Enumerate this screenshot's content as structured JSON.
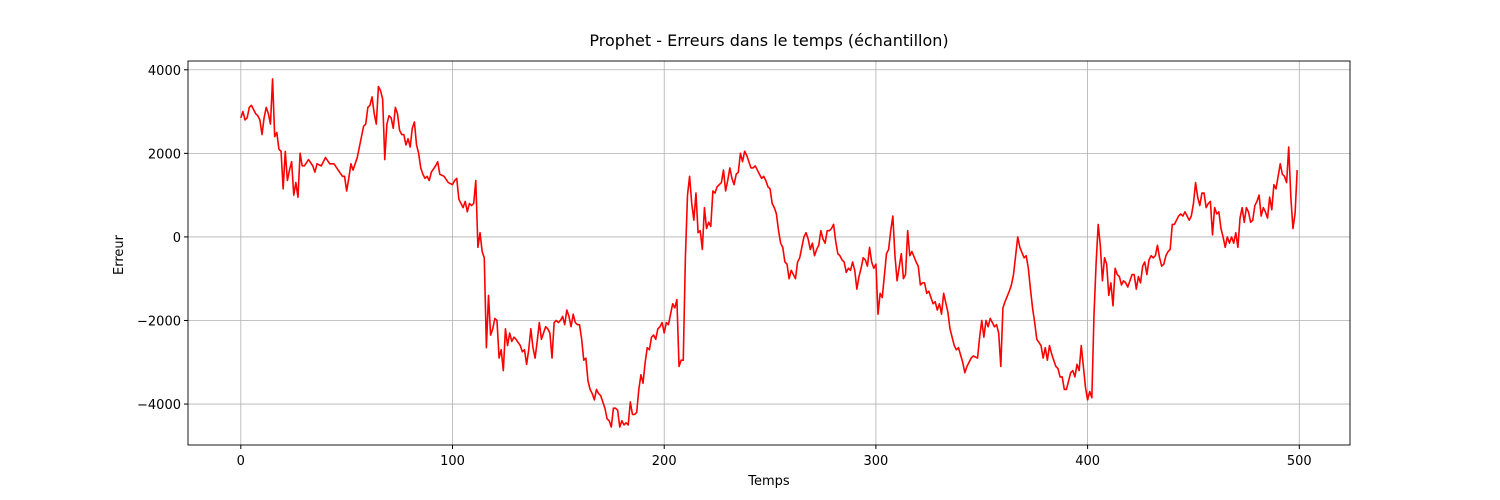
{
  "chart_data": {
    "type": "line",
    "title": "Prophet - Erreurs dans le temps (échantillon)",
    "x_label": "Temps",
    "y_label": "Erreur",
    "xlim": [
      -24.95,
      523.95
    ],
    "ylim": [
      -4980,
      4210
    ],
    "xticks": [
      0,
      100,
      200,
      300,
      400,
      500
    ],
    "yticks": [
      {
        "value": -4000,
        "label": "−4000"
      },
      {
        "value": -2000,
        "label": "−2000"
      },
      0,
      2000,
      4000
    ],
    "grid": true,
    "x": [
      0,
      1,
      2,
      3,
      4,
      5,
      6,
      7,
      8,
      9,
      10,
      11,
      12,
      13,
      14,
      15,
      16,
      17,
      18,
      19,
      20,
      21,
      22,
      23,
      24,
      25,
      26,
      27,
      28,
      29,
      30,
      32,
      34,
      35,
      36,
      38,
      40,
      42,
      44,
      46,
      48,
      49,
      50,
      51,
      52,
      53,
      55,
      57,
      58,
      59,
      60,
      61,
      62,
      63,
      64,
      65,
      66,
      67,
      68,
      69,
      70,
      71,
      72,
      73,
      74,
      75,
      76,
      77,
      78,
      79,
      80,
      81,
      82,
      83,
      84,
      85,
      86,
      87,
      88,
      89,
      90,
      92,
      93,
      94,
      96,
      98,
      100,
      101,
      102,
      103,
      105,
      106,
      107,
      108,
      109,
      110,
      111,
      112,
      113,
      114,
      115,
      116,
      117,
      118,
      119,
      120,
      121,
      122,
      123,
      124,
      125,
      126,
      127,
      128,
      129,
      130,
      132,
      133,
      134,
      135,
      136,
      137,
      138,
      139,
      140,
      141,
      142,
      143,
      144,
      145,
      146,
      147,
      148,
      149,
      150,
      151,
      152,
      153,
      154,
      155,
      156,
      157,
      158,
      159,
      160,
      161,
      162,
      163,
      164,
      165,
      166,
      167,
      168,
      169,
      170,
      171,
      172,
      173,
      174,
      175,
      176,
      177,
      178,
      179,
      180,
      181,
      182,
      183,
      184,
      185,
      186,
      187,
      188,
      189,
      190,
      191,
      192,
      193,
      194,
      195,
      196,
      197,
      198,
      199,
      200,
      201,
      202,
      203,
      204,
      205,
      206,
      207,
      208,
      209,
      210,
      211,
      212,
      213,
      214,
      215,
      216,
      217,
      218,
      219,
      220,
      221,
      222,
      223,
      224,
      225,
      226,
      227,
      228,
      229,
      230,
      231,
      232,
      233,
      234,
      235,
      236,
      237,
      238,
      239,
      240,
      241,
      242,
      243,
      244,
      245,
      246,
      247,
      248,
      249,
      250,
      251,
      252,
      253,
      254,
      255,
      256,
      257,
      258,
      259,
      260,
      261,
      262,
      263,
      264,
      265,
      266,
      267,
      268,
      269,
      270,
      271,
      272,
      273,
      274,
      275,
      276,
      277,
      278,
      279,
      280,
      281,
      282,
      283,
      284,
      285,
      286,
      287,
      288,
      289,
      290,
      291,
      292,
      293,
      294,
      295,
      296,
      297,
      298,
      299,
      300,
      301,
      302,
      303,
      305,
      306,
      307,
      308,
      309,
      310,
      312,
      313,
      314,
      315,
      316,
      317,
      319,
      320,
      321,
      322,
      323,
      324,
      325,
      327,
      328,
      329,
      330,
      331,
      332,
      334,
      335,
      336,
      337,
      338,
      339,
      341,
      342,
      343,
      344,
      345,
      346,
      348,
      349,
      350,
      351,
      352,
      353,
      354,
      356,
      357,
      358,
      359,
      360,
      361,
      363,
      364,
      365,
      366,
      367,
      368,
      370,
      371,
      372,
      373,
      374,
      375,
      376,
      378,
      379,
      380,
      381,
      382,
      383,
      385,
      386,
      387,
      388,
      389,
      390,
      392,
      393,
      394,
      395,
      396,
      397,
      399,
      400,
      401,
      402,
      403,
      404,
      405,
      406,
      407,
      408,
      409,
      410,
      411,
      412,
      413,
      414,
      415,
      416,
      417,
      418,
      419,
      420,
      421,
      422,
      423,
      424,
      425,
      426,
      427,
      428,
      429,
      430,
      431,
      432,
      433,
      434,
      435,
      436,
      437,
      438,
      439,
      440,
      441,
      442,
      443,
      444,
      445,
      446,
      447,
      448,
      449,
      450,
      451,
      452,
      453,
      454,
      455,
      456,
      457,
      458,
      459,
      460,
      461,
      462,
      463,
      464,
      465,
      466,
      467,
      468,
      469,
      470,
      471,
      472,
      473,
      474,
      475,
      476,
      477,
      478,
      479,
      480,
      481,
      482,
      483,
      484,
      485,
      486,
      487,
      488,
      489,
      490,
      491,
      492,
      493,
      494,
      495,
      496,
      497,
      498,
      499
    ],
    "series": [
      {
        "name": "Erreur",
        "color": "#ff0000",
        "values": [
          2850,
          3000,
          2800,
          2850,
          3100,
          3150,
          3050,
          2950,
          2900,
          2800,
          2450,
          2850,
          3100,
          2950,
          2700,
          3780,
          2400,
          2500,
          2100,
          2050,
          1150,
          2050,
          1350,
          1600,
          1800,
          1000,
          1300,
          950,
          2000,
          1700,
          1700,
          1850,
          1700,
          1550,
          1750,
          1700,
          1900,
          1750,
          1750,
          1600,
          1450,
          1450,
          1100,
          1400,
          1750,
          1600,
          1900,
          2400,
          2650,
          2700,
          3100,
          3150,
          3350,
          2950,
          2700,
          3600,
          3500,
          3300,
          1850,
          2700,
          2900,
          2850,
          2600,
          3100,
          2950,
          2550,
          2450,
          2450,
          2200,
          2350,
          2150,
          2600,
          2750,
          2200,
          2000,
          1650,
          1500,
          1400,
          1450,
          1350,
          1550,
          1700,
          1800,
          1500,
          1450,
          1300,
          1250,
          1350,
          1400,
          900,
          700,
          850,
          600,
          800,
          750,
          800,
          1350,
          -250,
          100,
          -350,
          -500,
          -2650,
          -1400,
          -2350,
          -2200,
          -1950,
          -2000,
          -2900,
          -2700,
          -3200,
          -2200,
          -2600,
          -2300,
          -2500,
          -2400,
          -2450,
          -2600,
          -2750,
          -2700,
          -3050,
          -2700,
          -2200,
          -2650,
          -2900,
          -2500,
          -2050,
          -2450,
          -2300,
          -2150,
          -2200,
          -2300,
          -2900,
          -2050,
          -2000,
          -2050,
          -2000,
          -1900,
          -2100,
          -1750,
          -1900,
          -2150,
          -1850,
          -2050,
          -2100,
          -2100,
          -2450,
          -2950,
          -2900,
          -3450,
          -3650,
          -3750,
          -3900,
          -3650,
          -3750,
          -3800,
          -3950,
          -4100,
          -4350,
          -4400,
          -4550,
          -4100,
          -4100,
          -4150,
          -4550,
          -4400,
          -4500,
          -4450,
          -4500,
          -3950,
          -4250,
          -4250,
          -4200,
          -3650,
          -3300,
          -3500,
          -3000,
          -2650,
          -2700,
          -2400,
          -2350,
          -2450,
          -2200,
          -2150,
          -2050,
          -2300,
          -2050,
          -2100,
          -1850,
          -1600,
          -1700,
          -1500,
          -3100,
          -2950,
          -2950,
          -500,
          1000,
          1450,
          800,
          400,
          1050,
          100,
          150,
          -300,
          700,
          200,
          350,
          250,
          1100,
          1050,
          1200,
          1250,
          1300,
          1600,
          1100,
          1350,
          1650,
          1400,
          1250,
          1500,
          1550,
          2000,
          1800,
          2050,
          1950,
          1800,
          1650,
          1650,
          1700,
          1600,
          1500,
          1400,
          1450,
          1350,
          1200,
          1150,
          800,
          700,
          550,
          150,
          -150,
          -250,
          -600,
          -650,
          -1000,
          -800,
          -900,
          -1000,
          -600,
          -500,
          -250,
          0,
          100,
          -50,
          -300,
          -150,
          -450,
          -300,
          -200,
          150,
          -50,
          -150,
          150,
          150,
          200,
          300,
          -100,
          -400,
          -450,
          -550,
          -600,
          -850,
          -750,
          -800,
          -600,
          -800,
          -1250,
          -950,
          -750,
          -500,
          -550,
          -700,
          -250,
          -600,
          -750,
          -650,
          -1850,
          -1350,
          -1450,
          -400,
          -300,
          150,
          500,
          -450,
          -1050,
          -400,
          -1000,
          -900,
          150,
          -450,
          -350,
          -600,
          -700,
          -1150,
          -1100,
          -1100,
          -1350,
          -1300,
          -1600,
          -1550,
          -1750,
          -1600,
          -1850,
          -1350,
          -1800,
          -2200,
          -2400,
          -2600,
          -2700,
          -2650,
          -3000,
          -3250,
          -3100,
          -3000,
          -2900,
          -2850,
          -2900,
          -2400,
          -2000,
          -2400,
          -2000,
          -2150,
          -1950,
          -2150,
          -2100,
          -2300,
          -3100,
          -1700,
          -1550,
          -1300,
          -1150,
          -900,
          -450,
          0,
          -250,
          -500,
          -450,
          -750,
          -1250,
          -1700,
          -2050,
          -2450,
          -2600,
          -2900,
          -2650,
          -2950,
          -2600,
          -2800,
          -3100,
          -3150,
          -3350,
          -3350,
          -3650,
          -3650,
          -3250,
          -3200,
          -3350,
          -3050,
          -3200,
          -2600,
          -3600,
          -3900,
          -3700,
          -3850,
          -1900,
          -650,
          300,
          -200,
          -1050,
          -500,
          -650,
          -1400,
          -1100,
          -1650,
          -750,
          -900,
          -950,
          -1150,
          -1050,
          -1100,
          -1200,
          -1050,
          -900,
          -900,
          -1250,
          -950,
          -1100,
          -700,
          -600,
          -900,
          -550,
          -450,
          -500,
          -450,
          -200,
          -500,
          -700,
          -650,
          -450,
          -350,
          -300,
          300,
          300,
          400,
          500,
          550,
          500,
          600,
          500,
          400,
          500,
          800,
          1300,
          950,
          750,
          1050,
          1050,
          700,
          800,
          850,
          50,
          700,
          550,
          600,
          200,
          0,
          -250,
          0,
          -150,
          0,
          -150,
          100,
          -250,
          450,
          700,
          350,
          700,
          600,
          350,
          400,
          750,
          850,
          1000,
          500,
          700,
          600,
          450,
          950,
          650,
          1250,
          1150,
          1450,
          1750,
          1500,
          1450,
          1300,
          2150,
          950,
          200,
          550,
          1600
        ]
      }
    ]
  }
}
